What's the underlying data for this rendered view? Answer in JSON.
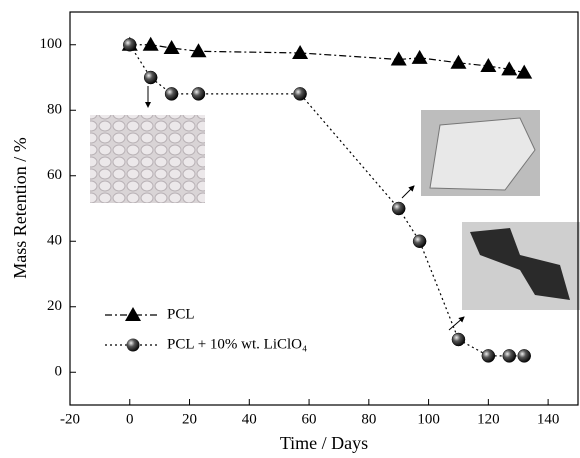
{
  "chart_data": {
    "type": "line",
    "x_label": "Time / Days",
    "y_label": "Mass Retention / %",
    "x": [
      0,
      7,
      14,
      23,
      57,
      90,
      97,
      110,
      120,
      127,
      132
    ],
    "series": [
      {
        "name": "PCL",
        "color": "#000000",
        "marker": "triangle",
        "line_style": "dashdot",
        "values": [
          100,
          100,
          99,
          98,
          97.5,
          95.5,
          96,
          94.5,
          93.5,
          92.5,
          91.5
        ]
      },
      {
        "name": "PCL + 10% wt. LiClO₄",
        "color": "#000000",
        "marker": "sphere",
        "line_style": "dotted",
        "values": [
          100,
          90,
          85,
          85,
          85,
          50,
          40,
          10,
          5,
          5,
          5
        ]
      }
    ],
    "xlim": [
      -20,
      150
    ],
    "xticks": [
      -20,
      0,
      20,
      40,
      60,
      80,
      100,
      120,
      140
    ],
    "ylim": [
      -10,
      110
    ],
    "yticks": [
      0,
      20,
      40,
      60,
      80,
      100
    ],
    "legend": "lower-left"
  }
}
